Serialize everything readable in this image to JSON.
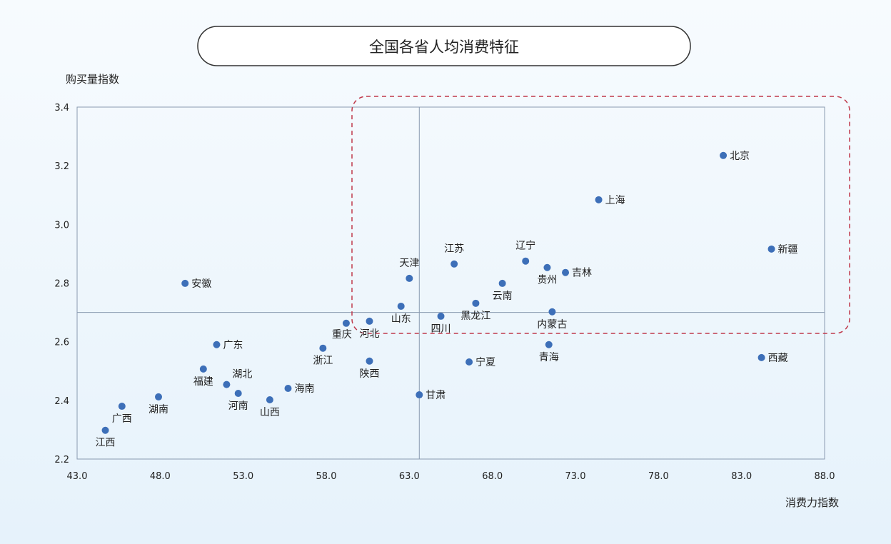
{
  "chart_data": {
    "type": "scatter",
    "title": "全国各省人均消费特征",
    "xlabel": "消费力指数",
    "ylabel": "购买量指数",
    "xlim": [
      43,
      88
    ],
    "ylim": [
      2.2,
      3.4
    ],
    "xticks": [
      "43.0",
      "48.0",
      "53.0",
      "58.0",
      "63.0",
      "68.0",
      "73.0",
      "78.0",
      "83.0",
      "88.0"
    ],
    "yticks": [
      "2.2",
      "2.4",
      "2.6",
      "2.8",
      "3.0",
      "3.2",
      "3.4"
    ],
    "reference_lines": {
      "x": 63.6,
      "y": 2.7
    },
    "highlight_region": {
      "x": [
        60.9,
        88.0
      ],
      "y": [
        2.63,
        3.4
      ]
    },
    "grid": false,
    "colors": {
      "point": "#3d6fb8",
      "highlight": "#c0394b",
      "axis": "#8a9bb0"
    },
    "points": [
      {
        "label": "北京",
        "x": 81.9,
        "y": 3.235
      },
      {
        "label": "上海",
        "x": 74.4,
        "y": 3.084
      },
      {
        "label": "新疆",
        "x": 84.8,
        "y": 2.916
      },
      {
        "label": "江苏",
        "x": 65.7,
        "y": 2.865
      },
      {
        "label": "辽宁",
        "x": 70.0,
        "y": 2.875
      },
      {
        "label": "贵州",
        "x": 71.3,
        "y": 2.853
      },
      {
        "label": "吉林",
        "x": 72.4,
        "y": 2.836
      },
      {
        "label": "天津",
        "x": 63.0,
        "y": 2.816
      },
      {
        "label": "云南",
        "x": 68.6,
        "y": 2.799
      },
      {
        "label": "安徽",
        "x": 49.5,
        "y": 2.799
      },
      {
        "label": "山东",
        "x": 62.5,
        "y": 2.721
      },
      {
        "label": "黑龙江",
        "x": 67.0,
        "y": 2.731
      },
      {
        "label": "四川",
        "x": 64.9,
        "y": 2.687
      },
      {
        "label": "内蒙古",
        "x": 71.6,
        "y": 2.702
      },
      {
        "label": "重庆",
        "x": 59.2,
        "y": 2.663
      },
      {
        "label": "河北",
        "x": 60.6,
        "y": 2.67
      },
      {
        "label": "广东",
        "x": 51.4,
        "y": 2.59
      },
      {
        "label": "浙江",
        "x": 57.8,
        "y": 2.578
      },
      {
        "label": "青海",
        "x": 71.4,
        "y": 2.59
      },
      {
        "label": "西藏",
        "x": 84.2,
        "y": 2.546
      },
      {
        "label": "陕西",
        "x": 60.6,
        "y": 2.534
      },
      {
        "label": "宁夏",
        "x": 66.6,
        "y": 2.531
      },
      {
        "label": "福建",
        "x": 50.6,
        "y": 2.507
      },
      {
        "label": "湖北",
        "x": 52.0,
        "y": 2.454
      },
      {
        "label": "河南",
        "x": 52.7,
        "y": 2.424
      },
      {
        "label": "海南",
        "x": 55.7,
        "y": 2.441
      },
      {
        "label": "山西",
        "x": 54.6,
        "y": 2.402
      },
      {
        "label": "甘肃",
        "x": 63.6,
        "y": 2.419
      },
      {
        "label": "湖南",
        "x": 47.9,
        "y": 2.412
      },
      {
        "label": "广西",
        "x": 45.7,
        "y": 2.38
      },
      {
        "label": "江西",
        "x": 44.7,
        "y": 2.298
      }
    ]
  }
}
